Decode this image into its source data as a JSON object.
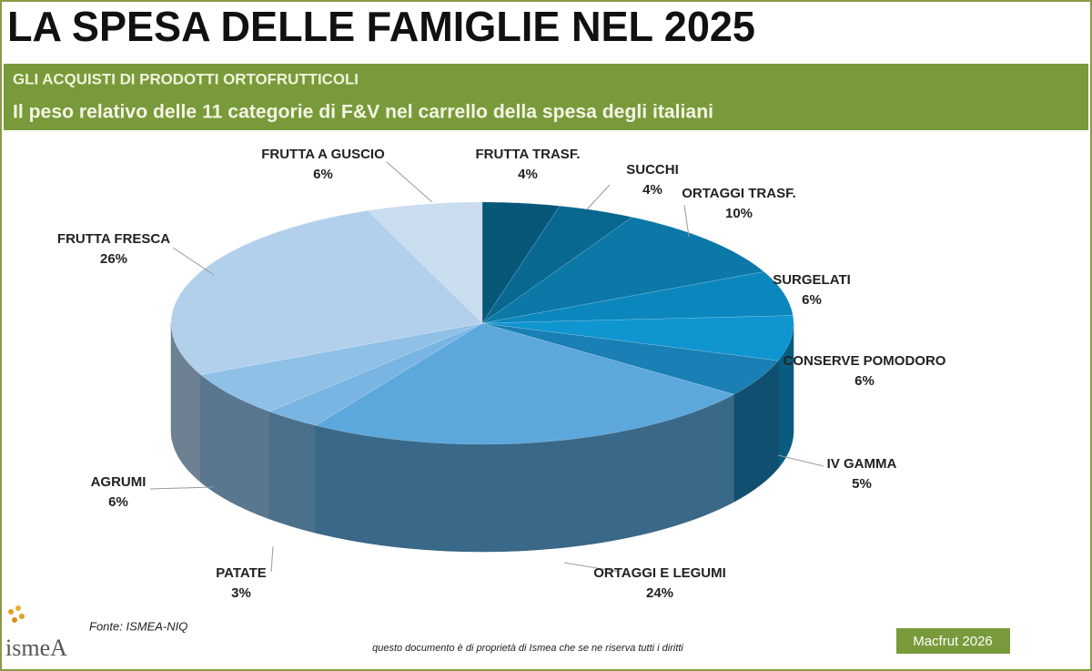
{
  "chart_data": {
    "type": "pie3d",
    "title": "LA SPESA DELLE FAMIGLIE NEL 2025",
    "subtitle": "GLI ACQUISTI DI PRODOTTI ORTOFRUTTICOLI",
    "description": "Il peso relativo delle 11 categorie di F&V nel carrello della spesa degli italiani",
    "categories": [
      "FRUTTA TRASF.",
      "SUCCHI",
      "ORTAGGI TRASF.",
      "SURGELATI",
      "CONSERVE POMODORO",
      "IV GAMMA",
      "ORTAGGI E LEGUMI",
      "PATATE",
      "AGRUMI",
      "FRUTTA FRESCA",
      "FRUTTA A GUSCIO"
    ],
    "values": [
      4,
      4,
      10,
      6,
      6,
      5,
      24,
      3,
      6,
      26,
      6
    ],
    "value_labels": [
      "4%",
      "4%",
      "10%",
      "6%",
      "6%",
      "5%",
      "24%",
      "3%",
      "6%",
      "26%",
      "6%"
    ],
    "colors": [
      "#075779",
      "#096890",
      "#0b78a8",
      "#0c87bd",
      "#0f95cf",
      "#1a7fb4",
      "#5ca8dc",
      "#79b5e2",
      "#8fc0e6",
      "#b2d0ec",
      "#cadcef"
    ],
    "source": "Fonte: ISMEA-NIQ",
    "note": "questo documento è di proprietà di Ismea che se ne riserva tutti i diritti",
    "footer": "Macfrut 2026",
    "logo": "ismeA"
  }
}
